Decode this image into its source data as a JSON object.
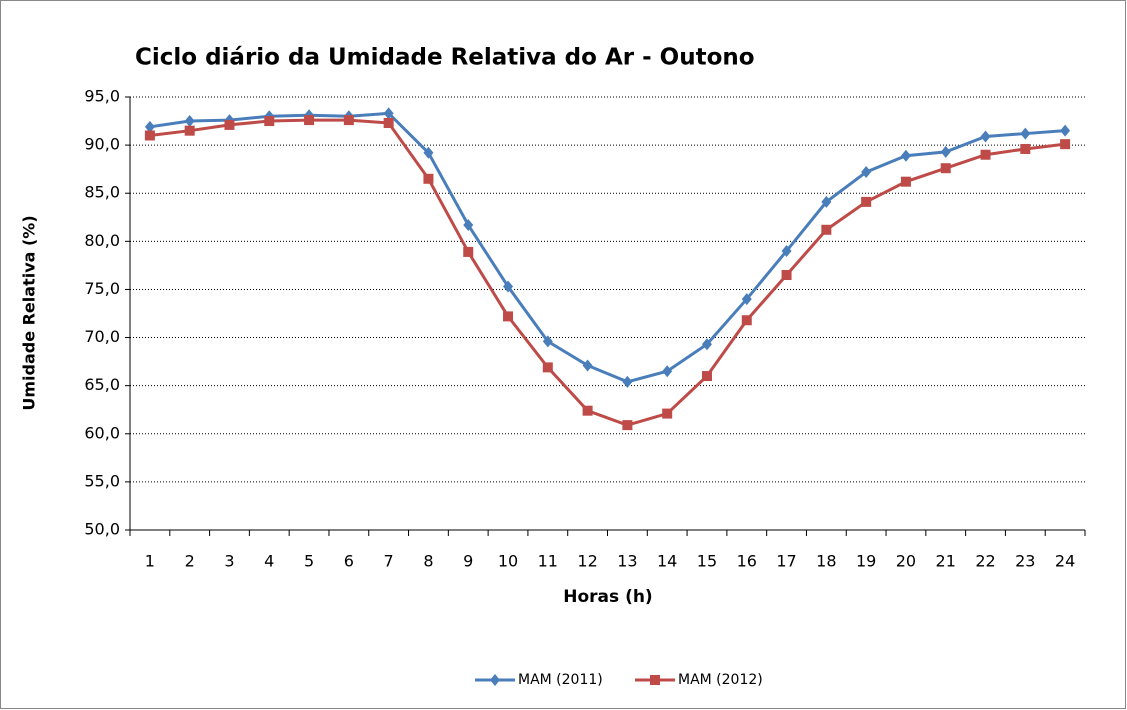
{
  "chart_data": {
    "type": "line",
    "title": "Ciclo diário da Umidade Relativa do Ar - Outono",
    "x_label": "Horas (h)",
    "y_label": "Umidade Relativa (%)",
    "categories": [
      "1",
      "2",
      "3",
      "4",
      "5",
      "6",
      "7",
      "8",
      "9",
      "10",
      "11",
      "12",
      "13",
      "14",
      "15",
      "16",
      "17",
      "18",
      "19",
      "20",
      "21",
      "22",
      "23",
      "24"
    ],
    "series": [
      {
        "name": "MAM (2011)",
        "color": "#4a7ebb",
        "marker": "diamond",
        "values": [
          91.9,
          92.5,
          92.6,
          93.0,
          93.1,
          93.0,
          93.3,
          89.2,
          81.7,
          75.3,
          69.6,
          67.1,
          65.4,
          66.5,
          69.3,
          74.0,
          79.0,
          84.1,
          87.2,
          88.9,
          89.3,
          90.9,
          91.2,
          91.5
        ]
      },
      {
        "name": "MAM (2012)",
        "color": "#be4b48",
        "marker": "square",
        "values": [
          91.0,
          91.5,
          92.1,
          92.5,
          92.6,
          92.6,
          92.3,
          86.5,
          78.9,
          72.2,
          66.9,
          62.4,
          60.9,
          62.1,
          66.0,
          71.8,
          76.5,
          81.2,
          84.1,
          86.2,
          87.6,
          89.0,
          89.6,
          90.1
        ]
      }
    ],
    "ylim": [
      50,
      95
    ],
    "yticks": [
      {
        "value": 50,
        "label": "50,0"
      },
      {
        "value": 55,
        "label": "55,0"
      },
      {
        "value": 60,
        "label": "60,0"
      },
      {
        "value": 65,
        "label": "65,0"
      },
      {
        "value": 70,
        "label": "70,0"
      },
      {
        "value": 75,
        "label": "75,0"
      },
      {
        "value": 80,
        "label": "80,0"
      },
      {
        "value": 85,
        "label": "85,0"
      },
      {
        "value": 90,
        "label": "90,0"
      },
      {
        "value": 95,
        "label": "95,0"
      }
    ],
    "grid": true,
    "legend": "bottom"
  }
}
